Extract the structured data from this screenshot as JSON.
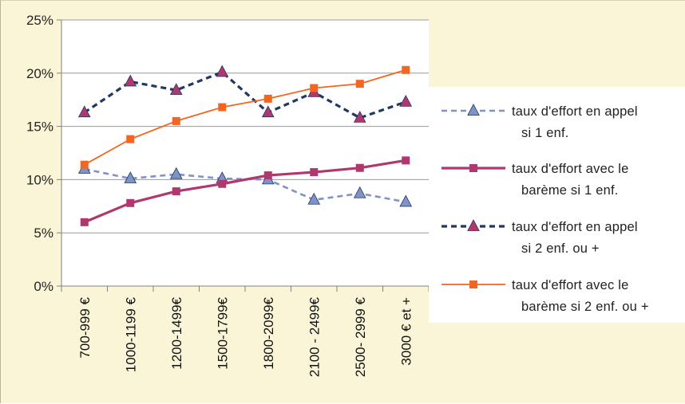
{
  "chart_data": {
    "type": "line",
    "categories": [
      "700-999 €",
      "1000-1199 €",
      "1200-1499€",
      "1500-1799€",
      "1800-2099€",
      "2100 - 2499€",
      "2500- 2999 €",
      "3000 € et +"
    ],
    "y_ticks": [
      "0%",
      "5%",
      "10%",
      "15%",
      "20%",
      "25%"
    ],
    "ylim": [
      0,
      25
    ],
    "grid": true,
    "legend_position": "right",
    "series": [
      {
        "name_lines": [
          "taux d'effort en appel",
          "si 1 enf."
        ],
        "values": [
          11.0,
          10.1,
          10.5,
          10.1,
          10.0,
          8.1,
          8.7,
          7.9
        ],
        "color": "#7f93c6",
        "marker": "triangle",
        "style": "dashed"
      },
      {
        "name_lines": [
          "taux d'effort avec le",
          "barème si 1 enf."
        ],
        "values": [
          6.0,
          7.8,
          8.9,
          9.6,
          10.4,
          10.7,
          11.1,
          11.8
        ],
        "color": "#b0386f",
        "marker": "square",
        "style": "solid"
      },
      {
        "name_lines": [
          "taux d'effort en appel",
          "si 2 enf.  ou +"
        ],
        "values": [
          16.3,
          19.2,
          18.4,
          20.1,
          16.3,
          18.2,
          15.8,
          17.3
        ],
        "color": "#1f3864",
        "marker_fill": "#b0386f",
        "marker": "triangle",
        "style": "dashed"
      },
      {
        "name_lines": [
          "taux d'effort avec le",
          "barème si 2 enf. ou +"
        ],
        "values": [
          11.4,
          13.8,
          15.5,
          16.8,
          17.6,
          18.6,
          19.0,
          20.3
        ],
        "color": "#f26522",
        "marker": "square",
        "style": "solid"
      }
    ]
  }
}
